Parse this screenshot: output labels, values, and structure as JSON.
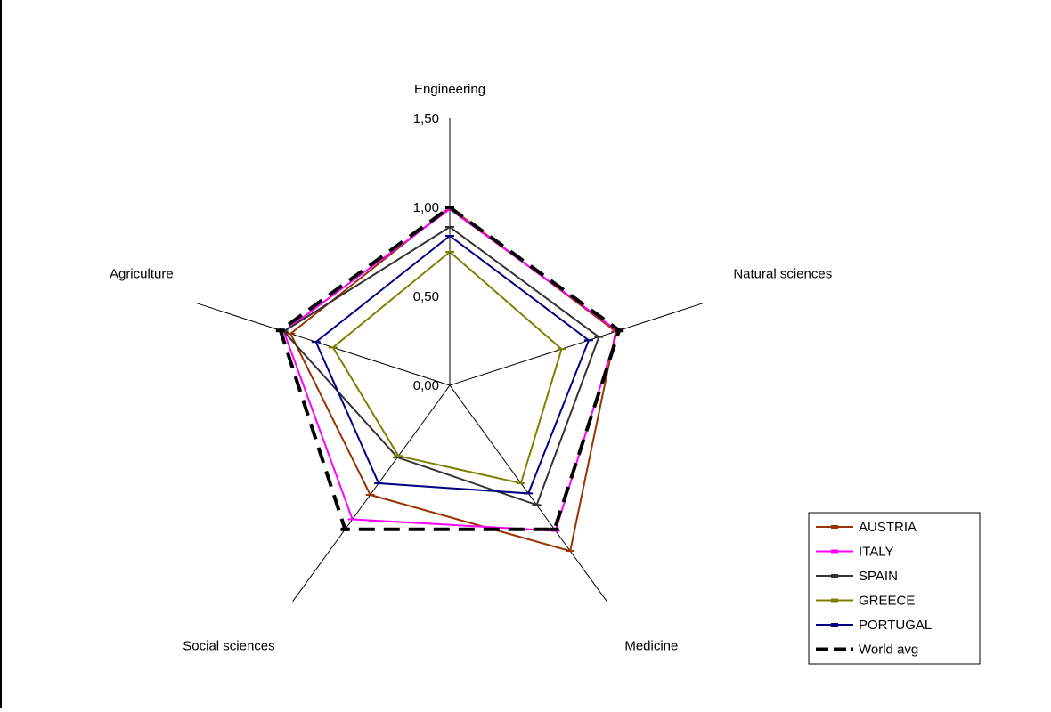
{
  "chart_data": {
    "type": "radar",
    "title": "",
    "categories": [
      "Engineering",
      "Natural sciences",
      "Medicine",
      "Social sciences",
      "Agriculture"
    ],
    "range": [
      0,
      1.5
    ],
    "ticks": [
      0,
      0.5,
      1.0,
      1.5
    ],
    "tick_labels": [
      "0,00",
      "0,50",
      "1,00",
      "1,50"
    ],
    "legend_position": "bottom-right",
    "series": [
      {
        "name": "AUSTRIA",
        "color": "#993300",
        "dashed": false,
        "width": 2,
        "values": [
          1.0,
          0.98,
          1.15,
          0.76,
          0.94
        ]
      },
      {
        "name": "ITALY",
        "color": "#FF00FF",
        "dashed": false,
        "width": 2,
        "values": [
          0.99,
          0.99,
          1.01,
          0.93,
          0.98
        ]
      },
      {
        "name": "SPAIN",
        "color": "#333333",
        "dashed": false,
        "width": 2,
        "values": [
          0.89,
          0.88,
          0.83,
          0.5,
          0.98
        ]
      },
      {
        "name": "GREECE",
        "color": "#808000",
        "dashed": false,
        "width": 2,
        "values": [
          0.75,
          0.66,
          0.68,
          0.49,
          0.69
        ]
      },
      {
        "name": "PORTUGAL",
        "color": "#000080",
        "dashed": false,
        "width": 2,
        "values": [
          0.84,
          0.82,
          0.75,
          0.68,
          0.79
        ]
      },
      {
        "name": "World avg",
        "color": "#000000",
        "dashed": true,
        "width": 4,
        "values": [
          1.0,
          1.0,
          1.0,
          1.0,
          1.0
        ]
      }
    ]
  }
}
